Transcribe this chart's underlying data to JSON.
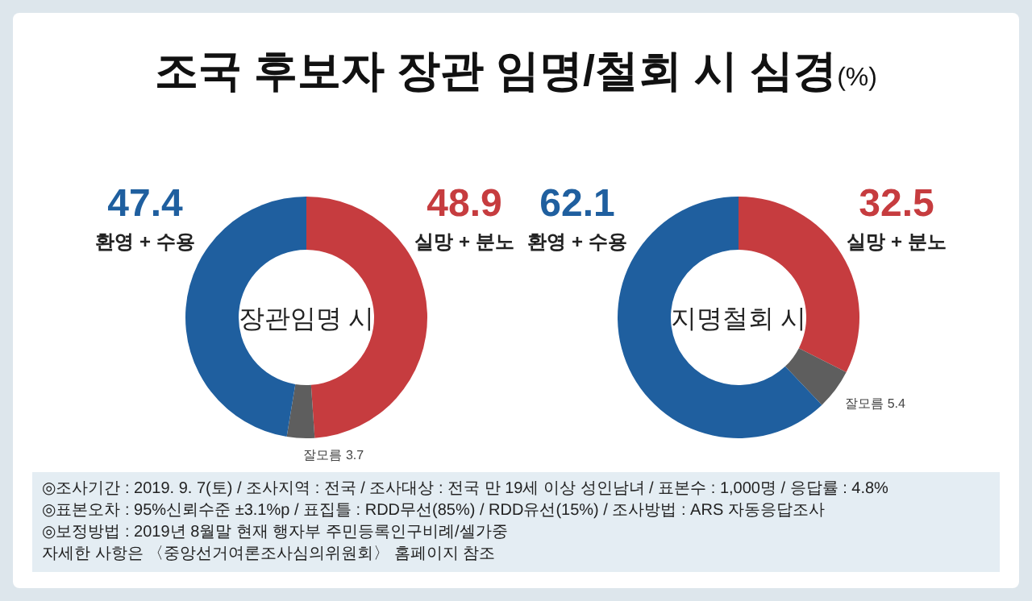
{
  "chart_data": [
    {
      "type": "donut",
      "title": "장관임명 시",
      "categories": [
        "실망 + 분노",
        "잘모름",
        "환영 + 수용"
      ],
      "values": [
        48.9,
        3.7,
        47.4
      ],
      "colors": [
        "#c63c3f",
        "#5e5e5e",
        "#1f5f9f"
      ],
      "data_labels": true,
      "annotations": [
        "조국 후보자 장관 임명/철회 시 심경(%)",
        "◎조사기간 : 2019. 9. 7(토) / 조사지역 : 전국 / 조사대상 : 전국 만 19세 이상 성인남녀 / 표본수 : 1,000명 / 응답률 : 4.8%",
        "◎표본오차 : 95%신뢰수준 ±3.1%p / 표집틀 : RDD무선(85%) / RDD유선(15%) / 조사방법 : ARS 자동응답조사",
        "◎보정방법 : 2019년 8월말 현재 행자부 주민등록인구비례/셀가중",
        "자세한 사항은 〈중앙선거여론조사심의위원회〉 홈페이지 참조"
      ]
    },
    {
      "type": "donut",
      "title": "지명철회 시",
      "categories": [
        "실망 + 분노",
        "잘모름",
        "환영 + 수용"
      ],
      "values": [
        32.5,
        5.4,
        62.1
      ],
      "colors": [
        "#c63c3f",
        "#5e5e5e",
        "#1f5f9f"
      ],
      "data_labels": true
    }
  ]
}
